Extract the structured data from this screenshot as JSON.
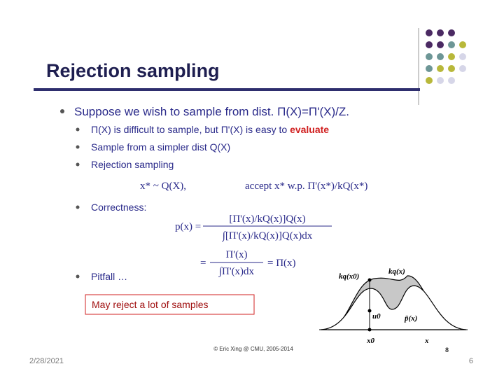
{
  "slide": {
    "title": "Rejection sampling",
    "bullet": "Suppose we wish to sample from dist. Π(X)=Π'(X)/Z.",
    "sub_bullets": [
      {
        "text": "Π(X) is difficult to sample, but Π'(X) is easy to ",
        "highlight": "evaluate"
      },
      {
        "text": "Sample from a simpler dist Q(X)"
      },
      {
        "text": "Rejection sampling"
      }
    ],
    "rejection_formula": {
      "draw": "x* ~ Q(X),",
      "accept": "accept x* w.p. Π'(x*)/kQ(x*)"
    },
    "correctness": {
      "label": "Correctness:",
      "lhs": "p(x) =",
      "numerator": "[Π'(x)/kQ(x)]Q(x)",
      "denominator": "∫[Π'(x)/kQ(x)]Q(x)dx",
      "eq": "=",
      "numerator2": "Π'(x)",
      "denominator2": "∫Π'(x)dx",
      "result": "= Π(x)"
    },
    "pitfall": "Pitfall …",
    "callout": "May reject a lot of samples",
    "figure": {
      "kq_x0": "kq(x0)",
      "kq_x": "kq(x)",
      "u0": "u0",
      "p_tilde": "p̃(x)",
      "x0": "x0",
      "x": "x"
    },
    "credit": "© Eric Xing @ CMU, 2005-2014",
    "inner_page": "8"
  },
  "footer": {
    "date": "2/28/2021",
    "page": "6"
  }
}
